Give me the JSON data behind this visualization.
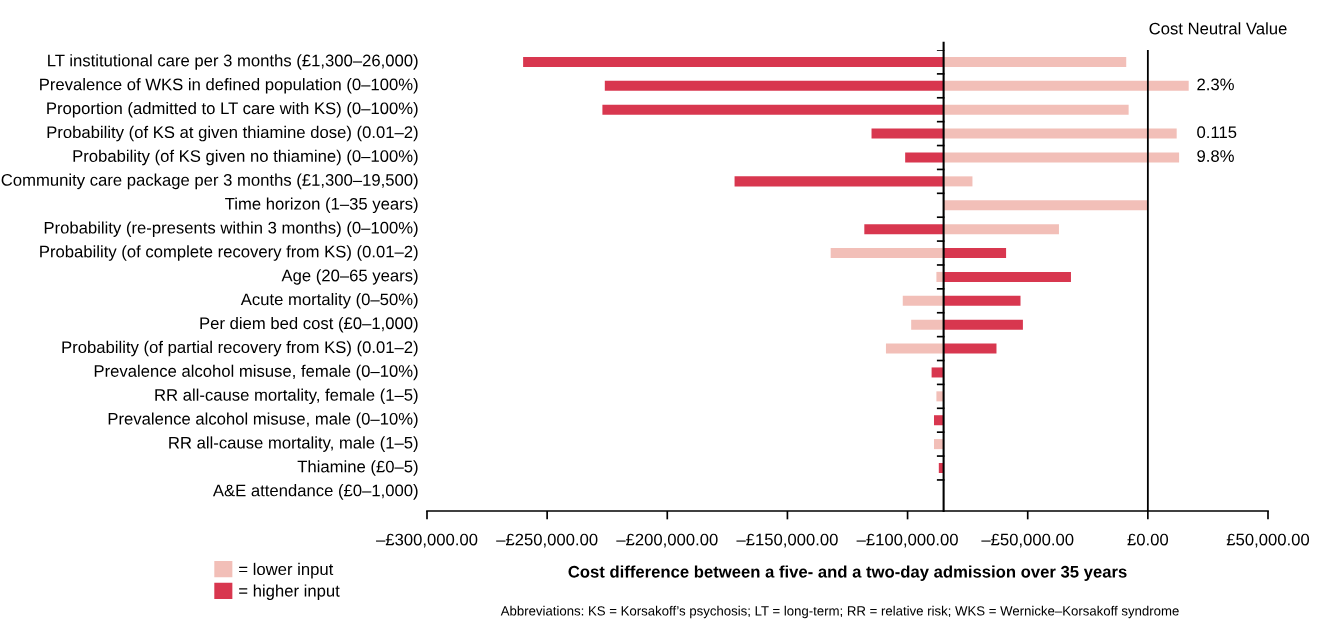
{
  "chart_data": {
    "type": "bar",
    "orientation": "horizontal",
    "xlabel": "Cost difference between a five- and a two-day admission over 35 years",
    "categories": [
      "LT institutional care per 3 months (£1,300–26,000)",
      "Prevalence of WKS in defined population (0–100%)",
      "Proportion (admitted to LT care with KS) (0–100%)",
      "Probability (of KS at given thiamine dose) (0.01–2)",
      "Probability (of KS given no thiamine) (0–100%)",
      "Community care package per 3 months (£1,300–19,500)",
      "Time horizon (1–35 years)",
      "Probability (re-presents within 3 months) (0–100%)",
      "Probability (of complete recovery from KS) (0.01–2)",
      "Age (20–65 years)",
      "Acute mortality (0–50%)",
      "Per diem bed cost (£0–1,000)",
      "Probability (of partial recovery from KS) (0.01–2)",
      "Prevalence alcohol misuse, female (0–10%)",
      "RR all-cause mortality, female (1–5)",
      "Prevalence alcohol misuse, male (0–10%)",
      "RR all-cause mortality, male (1–5)",
      "Thiamine (£0–5)",
      "A&E attendance (£0–1,000)"
    ],
    "series": [
      {
        "name": "= lower input",
        "color": "#f2bfb8",
        "base": [
          -85000,
          -85000,
          -85000,
          -85000,
          -85000,
          -85000,
          -85000,
          -85000,
          -85000,
          -85000,
          -85000,
          -85000,
          -85000,
          null,
          -85000,
          null,
          -85000,
          null,
          null
        ],
        "values": [
          76000,
          102000,
          77000,
          97000,
          98000,
          12000,
          85000,
          48000,
          -47000,
          -3000,
          -17000,
          -13500,
          -24000,
          null,
          -3000,
          null,
          -4000,
          null,
          null
        ]
      },
      {
        "name": "= higher input",
        "color": "#d8374f",
        "base": [
          -85000,
          -85000,
          -85000,
          -85000,
          -85000,
          -85000,
          null,
          -85000,
          -85000,
          -85000,
          -85000,
          -85000,
          -85000,
          -85000,
          null,
          -85000,
          null,
          -85000,
          null
        ],
        "values": [
          -175000,
          -141000,
          -142000,
          -30000,
          -16000,
          -87000,
          null,
          -33000,
          26000,
          53000,
          32000,
          33000,
          22000,
          -5000,
          null,
          -4000,
          null,
          -2000,
          null
        ]
      }
    ],
    "xlim": [
      -300000,
      50000
    ],
    "xticks": [
      {
        "value": -300000,
        "label": "–£300,000.00"
      },
      {
        "value": -250000,
        "label": "–£250,000.00"
      },
      {
        "value": -200000,
        "label": "–£200,000.00"
      },
      {
        "value": -150000,
        "label": "–£150,000.00"
      },
      {
        "value": -100000,
        "label": "–£100,000.00"
      },
      {
        "value": -50000,
        "label": "–£50,000.00"
      },
      {
        "value": 0,
        "label": "£0.00"
      },
      {
        "value": 50000,
        "label": "£50,000.00"
      }
    ],
    "ref_lines": [
      {
        "axis": "x",
        "value": -85000,
        "color": "#000000"
      },
      {
        "axis": "x",
        "value": 0,
        "label": "Cost Neutral Value",
        "color": "#000000"
      }
    ],
    "annotations": [
      "2.3%",
      "0.115",
      "9.8%",
      "Abbreviations: KS = Korsakoff’s psychosis; LT = long-term; RR = relative risk; WKS = Wernicke–Korsakoff syndrome"
    ],
    "legend": "bottom left",
    "grid": false
  }
}
